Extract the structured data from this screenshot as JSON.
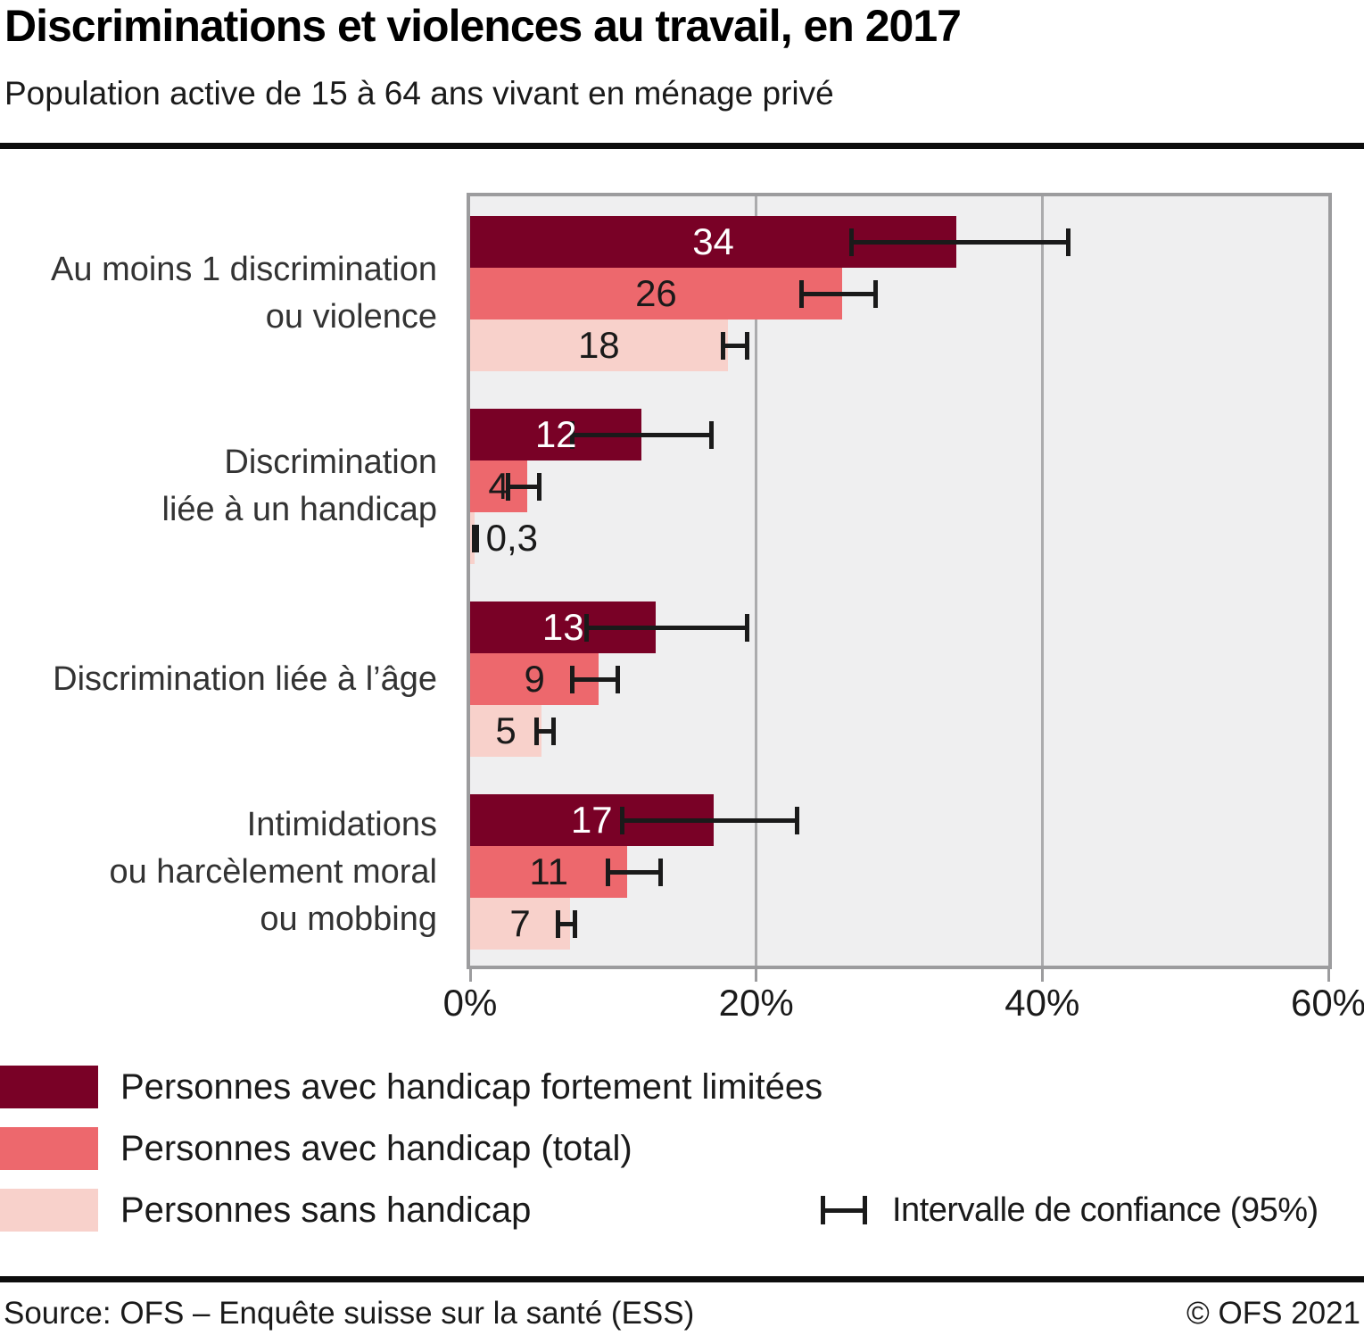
{
  "header": {
    "title": "Discriminations et violences au travail, en 2017",
    "subtitle": "Population active de 15 à 64 ans vivant en ménage privé"
  },
  "legend": {
    "ci_label": "Intervalle de confiance (95%)"
  },
  "footer": {
    "source": "Source: OFS – Enquête suisse sur la santé (ESS)",
    "copyright": "© OFS 2021"
  },
  "colors": {
    "series_dark": "#790126",
    "series_medium": "#ED686D",
    "series_light": "#F8D1CB",
    "plot_background": "#EFEFF0",
    "frame": "#9C9C9E",
    "gridline": "#ABABAD",
    "error_bar": "#1A1A1A"
  },
  "chart_data": {
    "type": "bar",
    "orientation": "horizontal",
    "title": "Discriminations et violences au travail, en 2017",
    "subtitle": "Population active de 15 à 64 ans vivant en ménage privé",
    "grid": "vertical",
    "legend_position": "bottom-left",
    "categories": [
      {
        "lines": [
          "Au moins 1 discrimination",
          "ou violence"
        ]
      },
      {
        "lines": [
          "Discrimination",
          "liée à un handicap"
        ]
      },
      {
        "lines": [
          "Discrimination liée à l’âge"
        ]
      },
      {
        "lines": [
          "Intimidations",
          "ou harcèlement moral",
          "ou mobbing"
        ]
      }
    ],
    "x_axis": {
      "min": 0,
      "max": 60,
      "unit": "%",
      "ticks": [
        {
          "value": 0,
          "label": "0%",
          "gridline": false
        },
        {
          "value": 20,
          "label": "20%",
          "gridline": true
        },
        {
          "value": 40,
          "label": "40%",
          "gridline": true
        },
        {
          "value": 60,
          "label": "60%",
          "gridline": false
        }
      ]
    },
    "series": [
      {
        "name": "Personnes avec handicap fortement limitées",
        "color": "#790126",
        "label_color": "#FFFFFF",
        "values": [
          34,
          12,
          13,
          17
        ],
        "value_labels": [
          "34",
          "12",
          "13",
          "17"
        ],
        "ci": [
          [
            26.5,
            42
          ],
          [
            7,
            17
          ],
          [
            8,
            19.5
          ],
          [
            10.5,
            23
          ]
        ],
        "label_outside": [
          false,
          false,
          false,
          false
        ]
      },
      {
        "name": "Personnes avec handicap (total)",
        "color": "#ED686D",
        "label_color": "#1A1A1A",
        "values": [
          26,
          4,
          9,
          11
        ],
        "value_labels": [
          "26",
          "4",
          "9",
          "11"
        ],
        "ci": [
          [
            23,
            28.5
          ],
          [
            2.5,
            5
          ],
          [
            7,
            10.5
          ],
          [
            9.5,
            13.5
          ]
        ],
        "label_outside": [
          false,
          false,
          false,
          false
        ]
      },
      {
        "name": "Personnes sans handicap",
        "color": "#F8D1CB",
        "label_color": "#1A1A1A",
        "values": [
          18,
          0.3,
          5,
          7
        ],
        "value_labels": [
          "18",
          "0,3",
          "5",
          "7"
        ],
        "ci": [
          [
            17.5,
            19.5
          ],
          [
            0.1,
            0.6
          ],
          [
            4.5,
            6
          ],
          [
            6,
            7.5
          ]
        ],
        "label_outside": [
          false,
          true,
          false,
          false
        ]
      }
    ],
    "error_bars": "Intervalle de confiance (95%)"
  }
}
